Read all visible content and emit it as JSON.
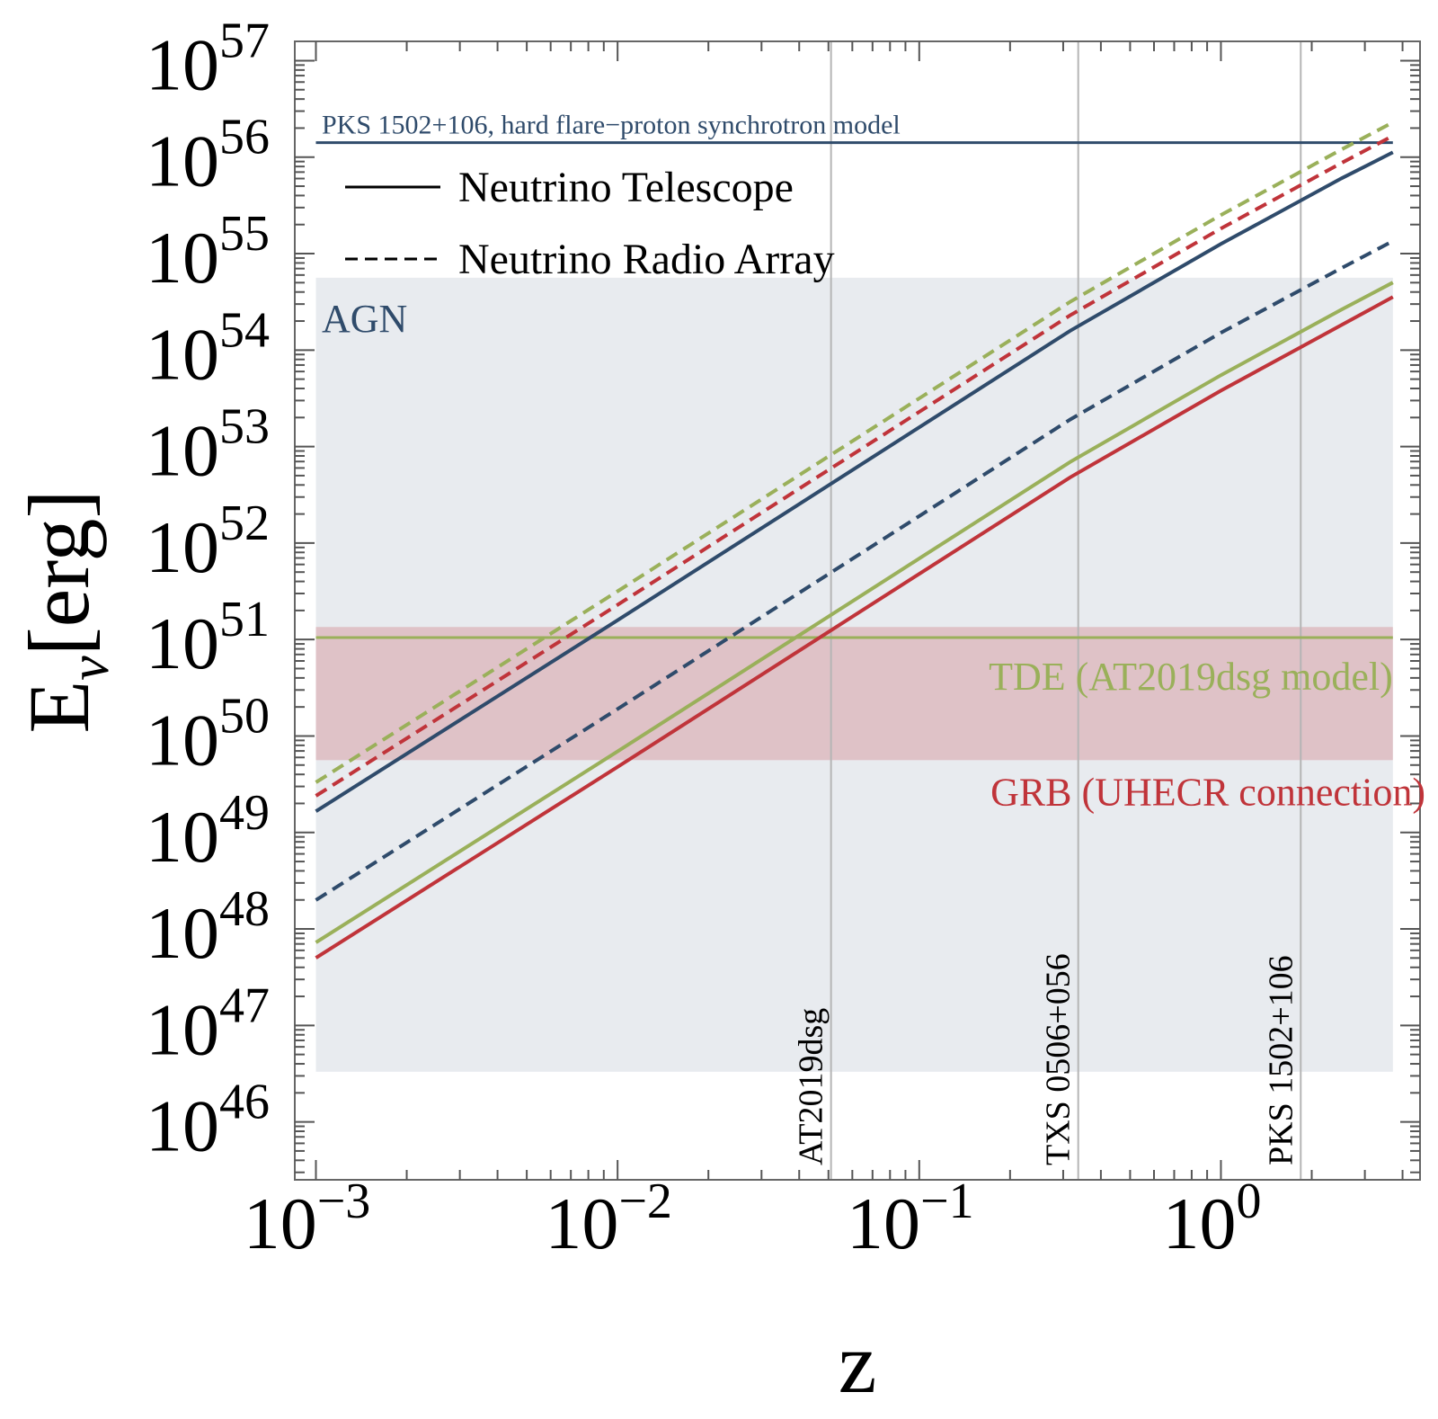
{
  "chart_data": {
    "type": "line",
    "title": "",
    "xlabel": "z",
    "ylabel": "E_ν [erg]",
    "xlabel_text": "z",
    "ylabel_main": "E",
    "ylabel_sub": "ν",
    "ylabel_unit": "[erg]",
    "xscale": "log",
    "yscale": "log",
    "xlim_log10": [
      -3.07,
      0.66
    ],
    "ylim_log10": [
      45.4,
      57.2
    ],
    "x_ticks": [
      {
        "base": "10",
        "exp": "−3",
        "log10": -3
      },
      {
        "base": "10",
        "exp": "−2",
        "log10": -2
      },
      {
        "base": "10",
        "exp": "−1",
        "log10": -1
      },
      {
        "base": "10",
        "exp": "0",
        "log10": 0
      }
    ],
    "y_ticks": [
      {
        "base": "10",
        "exp": "46",
        "log10": 46
      },
      {
        "base": "10",
        "exp": "47",
        "log10": 47
      },
      {
        "base": "10",
        "exp": "48",
        "log10": 48
      },
      {
        "base": "10",
        "exp": "49",
        "log10": 49
      },
      {
        "base": "10",
        "exp": "50",
        "log10": 50
      },
      {
        "base": "10",
        "exp": "51",
        "log10": 51
      },
      {
        "base": "10",
        "exp": "52",
        "log10": 52
      },
      {
        "base": "10",
        "exp": "53",
        "log10": 53
      },
      {
        "base": "10",
        "exp": "54",
        "log10": 54
      },
      {
        "base": "10",
        "exp": "55",
        "log10": 55
      },
      {
        "base": "10",
        "exp": "56",
        "log10": 56
      },
      {
        "base": "10",
        "exp": "57",
        "log10": 57
      }
    ],
    "series": [
      {
        "name": "AGN, Neutrino Telescope",
        "color": "#2f4b6b",
        "dash": false,
        "points": [
          [
            -3,
            49.22
          ],
          [
            -2,
            51.2
          ],
          [
            -1,
            53.2
          ],
          [
            -0.5,
            54.2
          ],
          [
            0,
            55.1
          ],
          [
            0.4,
            55.78
          ],
          [
            0.57,
            56.05
          ]
        ]
      },
      {
        "name": "AGN, Neutrino Radio Array",
        "color": "#2f4b6b",
        "dash": true,
        "points": [
          [
            -3,
            48.3
          ],
          [
            -2,
            50.28
          ],
          [
            -1,
            52.28
          ],
          [
            -0.5,
            53.28
          ],
          [
            0,
            54.18
          ],
          [
            0.4,
            54.85
          ],
          [
            0.57,
            55.13
          ]
        ]
      },
      {
        "name": "TDE, Neutrino Telescope",
        "color": "#9ab05a",
        "dash": false,
        "points": [
          [
            -3,
            47.86
          ],
          [
            -2,
            49.84
          ],
          [
            -1,
            51.84
          ],
          [
            -0.5,
            52.84
          ],
          [
            0,
            53.74
          ],
          [
            0.4,
            54.42
          ],
          [
            0.57,
            54.7
          ]
        ]
      },
      {
        "name": "TDE, Neutrino Radio Array",
        "color": "#9ab05a",
        "dash": true,
        "points": [
          [
            -3,
            49.52
          ],
          [
            -2,
            51.5
          ],
          [
            -1,
            53.5
          ],
          [
            -0.5,
            54.5
          ],
          [
            0,
            55.4
          ],
          [
            0.4,
            56.08
          ],
          [
            0.57,
            56.36
          ]
        ]
      },
      {
        "name": "GRB, Neutrino Telescope",
        "color": "#c0343a",
        "dash": false,
        "points": [
          [
            -3,
            47.7
          ],
          [
            -2,
            49.68
          ],
          [
            -1,
            51.68
          ],
          [
            -0.5,
            52.68
          ],
          [
            0,
            53.58
          ],
          [
            0.4,
            54.26
          ],
          [
            0.57,
            54.55
          ]
        ]
      },
      {
        "name": "GRB, Neutrino Radio Array",
        "color": "#c0343a",
        "dash": true,
        "points": [
          [
            -3,
            49.38
          ],
          [
            -2,
            51.36
          ],
          [
            -1,
            53.36
          ],
          [
            -0.5,
            54.36
          ],
          [
            0,
            55.26
          ],
          [
            0.4,
            55.94
          ],
          [
            0.57,
            56.22
          ]
        ]
      }
    ],
    "bands": [
      {
        "name": "AGN",
        "label": "AGN",
        "color": "#2f4b6b",
        "ylim_log10": [
          46.52,
          54.75
        ],
        "label_color": "#2f4b6b"
      },
      {
        "name": "GRB",
        "label": "GRB (UHECR connection)",
        "color": "#c0343a",
        "ylim_log10": [
          49.75,
          51.13
        ],
        "label_color": "#c0343a"
      }
    ],
    "hlines": [
      {
        "name": "PKS 1502+106 model",
        "label": "PKS 1502+106, hard flare−proton synchrotron model",
        "color": "#2f4b6b",
        "y_log10": 56.15
      },
      {
        "name": "TDE model",
        "label": "TDE (AT2019dsg model)",
        "color": "#9ab05a",
        "y_log10": 51.02
      }
    ],
    "vlines": [
      {
        "name": "AT2019dsg",
        "label": "AT2019dsg",
        "x": 0.051
      },
      {
        "name": "TXS 0506+056",
        "label": "TXS 0506+056",
        "x": 0.3365
      },
      {
        "name": "PKS 1502+106",
        "label": "PKS 1502+106",
        "x": 1.839
      }
    ],
    "legend": [
      {
        "label": "Neutrino Telescope",
        "style": "solid"
      },
      {
        "label": "Neutrino Radio Array",
        "style": "dashed"
      }
    ],
    "legend_placement": "top-left"
  }
}
